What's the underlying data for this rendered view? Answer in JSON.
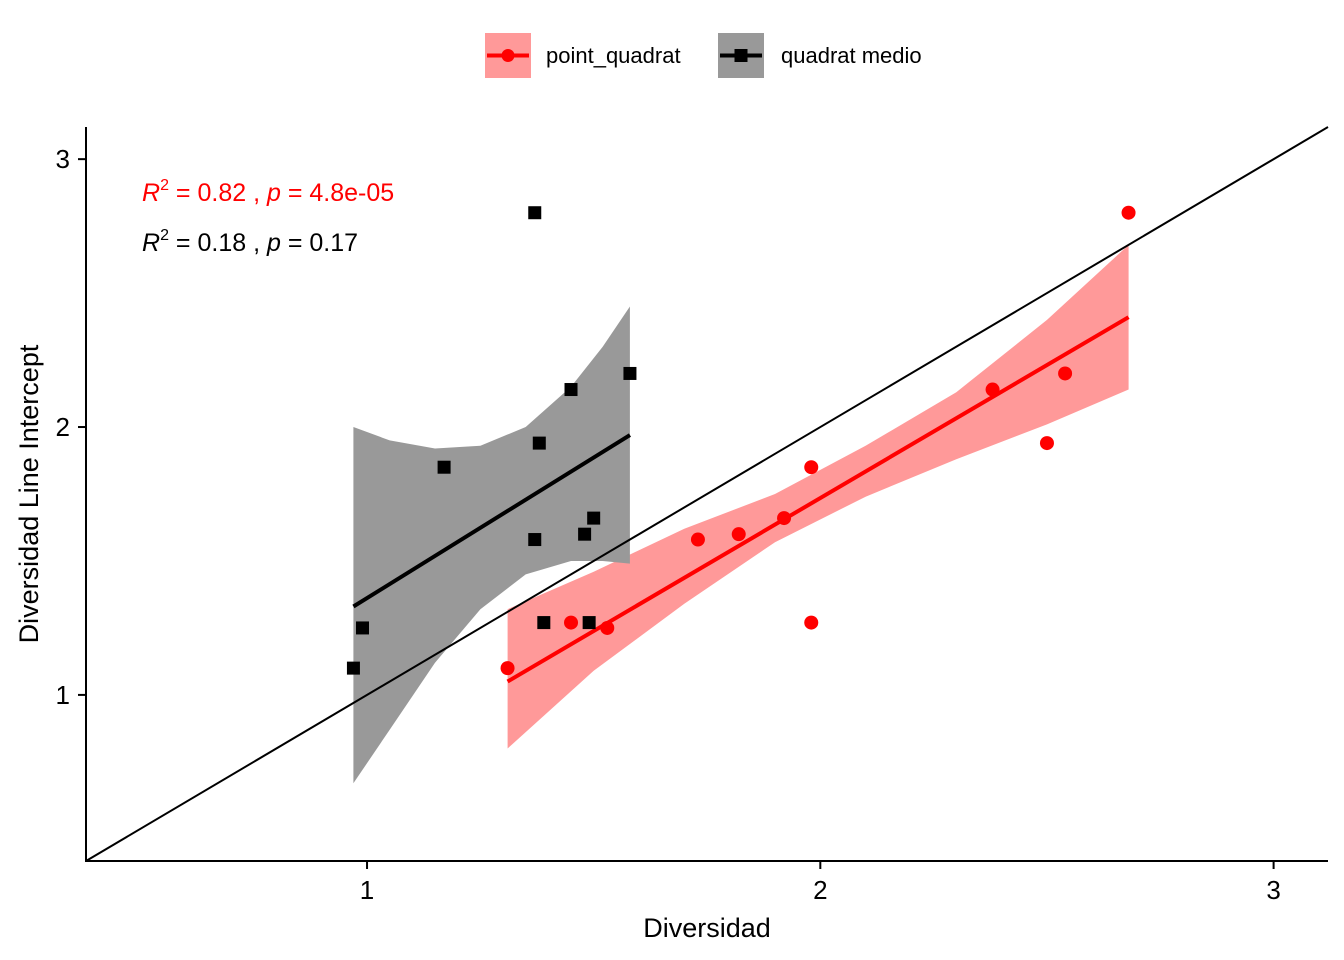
{
  "chart_data": {
    "type": "scatter",
    "title": "",
    "xlabel": "Diversidad",
    "ylabel": "Diversidad Line Intercept",
    "xlim": [
      0.38,
      3.12
    ],
    "ylim": [
      0.38,
      3.12
    ],
    "xticks": [
      1,
      2,
      3
    ],
    "yticks": [
      1,
      2,
      3
    ],
    "xtick_labels": [
      "1",
      "2",
      "3"
    ],
    "ytick_labels": [
      "1",
      "2",
      "3"
    ],
    "grid": false,
    "legend_position": "top",
    "reference_line": {
      "slope": 1,
      "intercept": 0,
      "color": "#000000"
    },
    "series": [
      {
        "name": "point_quadrat",
        "color": "#ff0000",
        "band_color": "#ff9999",
        "marker": "circle",
        "points": [
          {
            "x": 1.31,
            "y": 1.1
          },
          {
            "x": 1.45,
            "y": 1.27
          },
          {
            "x": 1.53,
            "y": 1.25
          },
          {
            "x": 1.73,
            "y": 1.58
          },
          {
            "x": 1.82,
            "y": 1.6
          },
          {
            "x": 1.92,
            "y": 1.66
          },
          {
            "x": 1.98,
            "y": 1.85
          },
          {
            "x": 1.98,
            "y": 1.27
          },
          {
            "x": 2.38,
            "y": 2.14
          },
          {
            "x": 2.5,
            "y": 1.94
          },
          {
            "x": 2.54,
            "y": 2.2
          },
          {
            "x": 2.68,
            "y": 2.8
          }
        ],
        "fit_line": {
          "x": [
            1.31,
            2.68
          ],
          "y": [
            1.05,
            2.41
          ]
        },
        "ci_band": {
          "x": [
            1.31,
            1.5,
            1.7,
            1.9,
            2.1,
            2.3,
            2.5,
            2.68
          ],
          "lower": [
            0.8,
            1.09,
            1.34,
            1.57,
            1.74,
            1.88,
            2.01,
            2.14
          ],
          "upper": [
            1.32,
            1.46,
            1.62,
            1.75,
            1.93,
            2.13,
            2.4,
            2.68
          ]
        },
        "stats": {
          "r2": "0.82",
          "p": "4.8e-05"
        }
      },
      {
        "name": "quadrat medio",
        "color": "#000000",
        "band_color": "#999999",
        "marker": "square",
        "points": [
          {
            "x": 0.97,
            "y": 1.1
          },
          {
            "x": 0.99,
            "y": 1.25
          },
          {
            "x": 1.17,
            "y": 1.85
          },
          {
            "x": 1.37,
            "y": 1.58
          },
          {
            "x": 1.37,
            "y": 2.8
          },
          {
            "x": 1.38,
            "y": 1.94
          },
          {
            "x": 1.39,
            "y": 1.27
          },
          {
            "x": 1.45,
            "y": 2.14
          },
          {
            "x": 1.48,
            "y": 1.6
          },
          {
            "x": 1.49,
            "y": 1.27
          },
          {
            "x": 1.5,
            "y": 1.66
          },
          {
            "x": 1.58,
            "y": 2.2
          }
        ],
        "fit_line": {
          "x": [
            0.97,
            1.58
          ],
          "y": [
            1.33,
            1.97
          ]
        },
        "ci_band": {
          "x": [
            0.97,
            1.05,
            1.15,
            1.25,
            1.35,
            1.45,
            1.52,
            1.58
          ],
          "lower": [
            0.67,
            0.87,
            1.12,
            1.32,
            1.45,
            1.5,
            1.5,
            1.49
          ],
          "upper": [
            2.0,
            1.95,
            1.92,
            1.93,
            2.0,
            2.15,
            2.3,
            2.45
          ]
        },
        "stats": {
          "r2": "0.18",
          "p": "0.17"
        }
      }
    ],
    "annotations": {
      "r2_label": "R",
      "r2_exponent": "2",
      "r2_equals": " = ",
      "separator": " , ",
      "p_label": "p",
      "p_equals": " = "
    }
  }
}
